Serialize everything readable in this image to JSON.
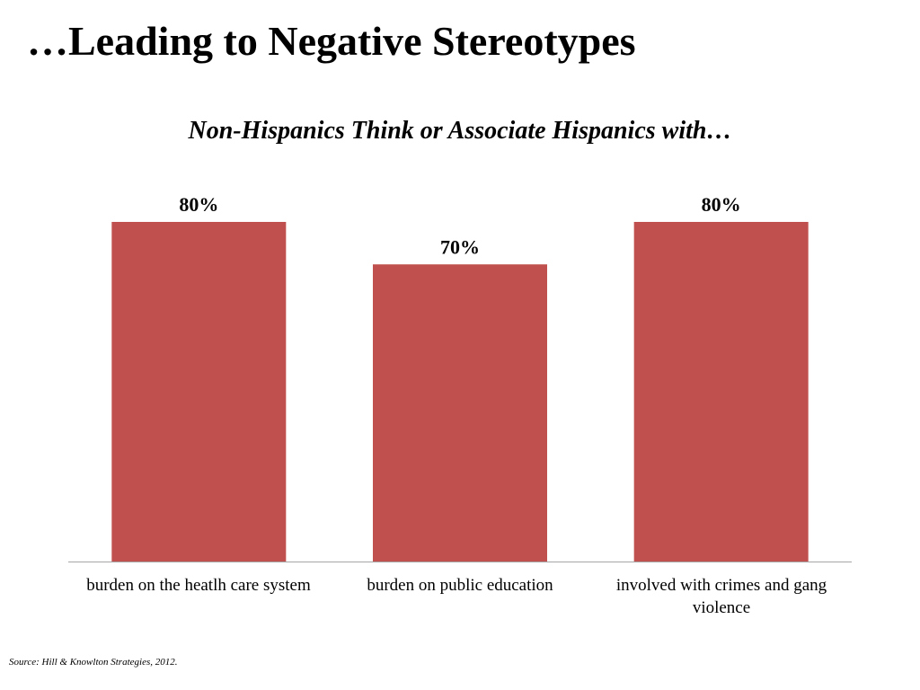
{
  "slide": {
    "title": "…Leading to Negative Stereotypes",
    "source": "Source: Hill & Knowlton Strategies, 2012."
  },
  "chart_data": {
    "type": "bar",
    "title": "Non-Hispanics Think or Associate Hispanics with…",
    "categories": [
      "burden on the heatlh care system",
      "burden on public education",
      "involved with crimes and gang violence"
    ],
    "values": [
      80,
      70,
      80
    ],
    "value_labels": [
      "80%",
      "70%",
      "80%"
    ],
    "ylim": [
      0,
      80
    ],
    "xlabel": "",
    "ylabel": "",
    "grid": false,
    "legend": "none",
    "bar_color": "#C0504D",
    "axis_color": "#A6A6A6"
  }
}
